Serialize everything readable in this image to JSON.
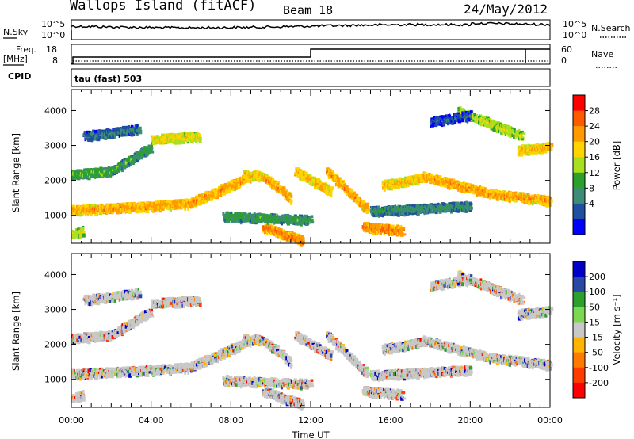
{
  "header": {
    "station": "Wallops Island (fitACF)",
    "beam": "Beam 18",
    "date": "24/May/2012"
  },
  "top_panels": {
    "nsky_label": "N.Sky",
    "nsearch_label": "N.Search",
    "noise_ticks": [
      "10^5",
      "10^0"
    ],
    "freq_label_line1": "Freq.",
    "freq_label_line2": "[MHz]",
    "freq_ticks": [
      "18",
      "8"
    ],
    "nave_label": "Nave",
    "nave_ticks": [
      "60",
      "0"
    ],
    "cpid_label": "CPID",
    "cpid_value": "tau (fast) 503",
    "freq_step_hour": 12.0
  },
  "chart_data": [
    {
      "type": "heatmap",
      "name": "power-panel",
      "xlabel": "",
      "ylabel": "Slant Range [km]",
      "y_ticks": [
        1000,
        2000,
        3000,
        4000
      ],
      "ylim": [
        200,
        4600
      ],
      "xlim_hours": [
        0,
        24
      ],
      "colorbar": {
        "label": "Power [dB]",
        "ticks": [
          "28",
          "24",
          "20",
          "16",
          "12",
          "8",
          "4"
        ],
        "colors": [
          "#ff0000",
          "#ff5a00",
          "#ff9a00",
          "#ffd400",
          "#a8e020",
          "#2ca02c",
          "#3c8c78",
          "#1f4fa0",
          "#0000ff"
        ]
      }
    },
    {
      "type": "heatmap",
      "name": "velocity-panel",
      "xlabel": "Time UT",
      "ylabel": "Slant Range [km]",
      "y_ticks": [
        1000,
        2000,
        3000,
        4000
      ],
      "ylim": [
        200,
        4600
      ],
      "xlim_hours": [
        0,
        24
      ],
      "x_tick_labels": [
        "00:00",
        "04:00",
        "08:00",
        "12:00",
        "16:00",
        "20:00",
        "00:00"
      ],
      "colorbar": {
        "label": "Velocity [m s⁻¹]",
        "ticks": [
          "200",
          "100",
          "50",
          "15",
          "-15",
          "-50",
          "-100",
          "-200"
        ],
        "colors": [
          "#0000c8",
          "#2848a8",
          "#2ca02c",
          "#7cd850",
          "#c8c8c8",
          "#ffb400",
          "#ff7a00",
          "#ff3c00",
          "#ff0000"
        ]
      }
    }
  ],
  "echo_bands": [
    {
      "t0": 0.0,
      "t1": 3.6,
      "r0": 1180,
      "r1": 1280,
      "p": 26
    },
    {
      "t0": 3.6,
      "t1": 6.0,
      "r0": 1280,
      "r1": 1380,
      "p": 26
    },
    {
      "t0": 6.0,
      "t1": 9.2,
      "r0": 1400,
      "r1": 2200,
      "p": 26
    },
    {
      "t0": 8.6,
      "t1": 9.6,
      "r0": 2200,
      "r1": 2150,
      "p": 24
    },
    {
      "t0": 9.6,
      "t1": 11.0,
      "r0": 2150,
      "r1": 1500,
      "p": 26
    },
    {
      "t0": 9.6,
      "t1": 11.6,
      "r0": 700,
      "r1": 300,
      "p": 28
    },
    {
      "t0": 11.2,
      "t1": 13.0,
      "r0": 2300,
      "r1": 1700,
      "p": 24
    },
    {
      "t0": 12.8,
      "t1": 14.8,
      "r0": 2300,
      "r1": 1200,
      "p": 26
    },
    {
      "t0": 14.6,
      "t1": 16.6,
      "r0": 700,
      "r1": 600,
      "p": 28
    },
    {
      "t0": 15.6,
      "t1": 17.6,
      "r0": 1900,
      "r1": 2100,
      "p": 24
    },
    {
      "t0": 17.6,
      "t1": 21.0,
      "r0": 2150,
      "r1": 1650,
      "p": 26
    },
    {
      "t0": 21.0,
      "t1": 24.0,
      "r0": 1650,
      "r1": 1450,
      "p": 26
    },
    {
      "t0": 0.0,
      "t1": 2.0,
      "r0": 2200,
      "r1": 2300,
      "p": 16
    },
    {
      "t0": 2.0,
      "t1": 4.0,
      "r0": 2300,
      "r1": 3000,
      "p": 14
    },
    {
      "t0": 4.0,
      "t1": 6.4,
      "r0": 3200,
      "r1": 3300,
      "p": 22
    },
    {
      "t0": 0.6,
      "t1": 3.4,
      "r0": 3300,
      "r1": 3500,
      "p": 10
    },
    {
      "t0": 7.6,
      "t1": 12.0,
      "r0": 1000,
      "r1": 900,
      "p": 14
    },
    {
      "t0": 15.0,
      "t1": 20.0,
      "r0": 1150,
      "r1": 1300,
      "p": 12
    },
    {
      "t0": 19.4,
      "t1": 22.6,
      "r0": 4000,
      "r1": 3300,
      "p": 20
    },
    {
      "t0": 22.4,
      "t1": 24.0,
      "r0": 2900,
      "r1": 3000,
      "p": 24
    },
    {
      "t0": 18.0,
      "t1": 20.0,
      "r0": 3700,
      "r1": 3900,
      "p": 8
    },
    {
      "t0": 0.0,
      "t1": 0.6,
      "r0": 500,
      "r1": 600,
      "p": 20
    }
  ]
}
